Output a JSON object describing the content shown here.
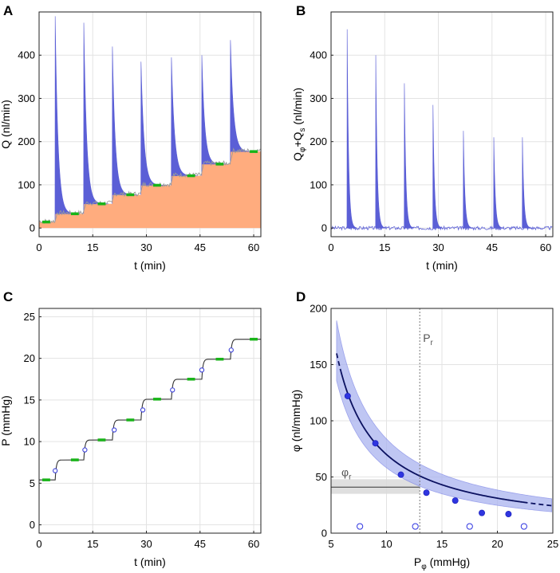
{
  "colors": {
    "flow_blue": "#5b5fd6",
    "orange": "#ffac7e",
    "green": "#18b418",
    "gray_trace": "#9a9a9a",
    "band_blue": "#aab3ef",
    "fit_dark": "#0b1160",
    "gray_band": "#d9d9d9"
  },
  "chart_data": [
    {
      "panel": "A",
      "type": "area",
      "xlabel": "t (min)",
      "ylabel": "Q (nl/min)",
      "xlim": [
        0,
        62
      ],
      "ylim": [
        -20,
        500
      ],
      "xticks": [
        0,
        15,
        30,
        45,
        60
      ],
      "yticks": [
        0,
        100,
        200,
        300,
        400
      ],
      "step_times": [
        0,
        4.5,
        12.5,
        20.5,
        28.5,
        37,
        45.5,
        53.5
      ],
      "step_end": 62,
      "baseline_levels": [
        14,
        33,
        56,
        77,
        99,
        121,
        148,
        177
      ],
      "peak_values": [
        490,
        475,
        420,
        385,
        395,
        400,
        435
      ],
      "green_markers": [
        {
          "t": 2,
          "q": 14
        },
        {
          "t": 10,
          "q": 33
        },
        {
          "t": 17.5,
          "q": 56
        },
        {
          "t": 25.5,
          "q": 77
        },
        {
          "t": 33,
          "q": 99
        },
        {
          "t": 42.5,
          "q": 121
        },
        {
          "t": 50.5,
          "q": 148
        },
        {
          "t": 60,
          "q": 177
        }
      ]
    },
    {
      "panel": "B",
      "type": "area",
      "xlabel": "t (min)",
      "ylabel": "Qφ+Qs (nl/min)",
      "xlim": [
        0,
        62
      ],
      "ylim": [
        -20,
        500
      ],
      "xticks": [
        0,
        15,
        30,
        45,
        60
      ],
      "yticks": [
        0,
        100,
        200,
        300,
        400
      ],
      "spike_times": [
        4.5,
        12.5,
        20.5,
        28.5,
        37,
        45.5,
        53.5
      ],
      "spike_peaks": [
        460,
        400,
        335,
        285,
        225,
        210,
        210
      ]
    },
    {
      "panel": "C",
      "type": "line",
      "xlabel": "t (min)",
      "ylabel": "P (mmHg)",
      "xlim": [
        0,
        62
      ],
      "ylim": [
        -1,
        26
      ],
      "xticks": [
        0,
        15,
        30,
        45,
        60
      ],
      "yticks": [
        0,
        5,
        10,
        15,
        20,
        25
      ],
      "step_times": [
        4.5,
        12.5,
        20.5,
        28.5,
        37,
        45.5,
        53.5
      ],
      "levels": [
        5.4,
        7.8,
        10.2,
        12.6,
        15.1,
        17.5,
        19.9,
        22.3
      ],
      "open_circles": [
        {
          "t": 4.5,
          "p": 6.5
        },
        {
          "t": 12.8,
          "p": 9.0
        },
        {
          "t": 21.0,
          "p": 11.4
        },
        {
          "t": 29.0,
          "p": 13.8
        },
        {
          "t": 37.3,
          "p": 16.2
        },
        {
          "t": 45.5,
          "p": 18.6
        },
        {
          "t": 53.7,
          "p": 21.0
        }
      ],
      "green_markers": [
        {
          "t": 2,
          "p": 5.4
        },
        {
          "t": 10,
          "p": 7.8
        },
        {
          "t": 17.5,
          "p": 10.2
        },
        {
          "t": 25.5,
          "p": 12.6
        },
        {
          "t": 33,
          "p": 15.1
        },
        {
          "t": 42.5,
          "p": 17.5
        },
        {
          "t": 50.5,
          "p": 19.9
        },
        {
          "t": 60,
          "p": 22.3
        }
      ]
    },
    {
      "panel": "D",
      "type": "scatter",
      "xlabel": "Pφ (mmHg)",
      "ylabel": "φ (nl/mmHg)",
      "xlim": [
        5,
        25
      ],
      "ylim": [
        0,
        200
      ],
      "xticks": [
        5,
        10,
        15,
        20,
        25
      ],
      "yticks": [
        0,
        50,
        100,
        150,
        200
      ],
      "filled_points": [
        {
          "x": 6.5,
          "y": 122
        },
        {
          "x": 9.0,
          "y": 80
        },
        {
          "x": 11.3,
          "y": 52
        },
        {
          "x": 13.6,
          "y": 36
        },
        {
          "x": 16.2,
          "y": 29
        },
        {
          "x": 18.6,
          "y": 18
        },
        {
          "x": 21.0,
          "y": 17
        }
      ],
      "open_points": [
        {
          "x": 7.6,
          "y": 6
        },
        {
          "x": 12.6,
          "y": 6
        },
        {
          "x": 17.5,
          "y": 6
        },
        {
          "x": 22.4,
          "y": 6
        }
      ],
      "fit": {
        "model": "phi = a/(P - P0)",
        "a": 560,
        "p0": 2.0,
        "solid_range": [
          5.9,
          22.3
        ],
        "x_start": 5.5
      },
      "pr_line": 13.0,
      "pr_label": "P",
      "pr_subscript": "r",
      "phi_r": 41,
      "phi_r_band": [
        35,
        48
      ],
      "phi_r_label": "φ",
      "phi_r_subscript": "r"
    }
  ],
  "panels": {
    "a": {
      "label": "A",
      "ylabel": "Q (nl/min)",
      "xlabel": "t (min)"
    },
    "b": {
      "label": "B",
      "ylabel_main": "Q",
      "ylabel_sub1": "φ",
      "ylabel_mid": "+Q",
      "ylabel_sub2": "s",
      "ylabel_tail": " (nl/min)",
      "xlabel": "t (min)"
    },
    "c": {
      "label": "C",
      "ylabel": "P (mmHg)",
      "xlabel": "t (min)"
    },
    "d": {
      "label": "D",
      "ylabel": "φ (nl/mmHg)",
      "xlabel_main": "P",
      "xlabel_sub": "φ",
      "xlabel_tail": " (mmHg)"
    }
  }
}
